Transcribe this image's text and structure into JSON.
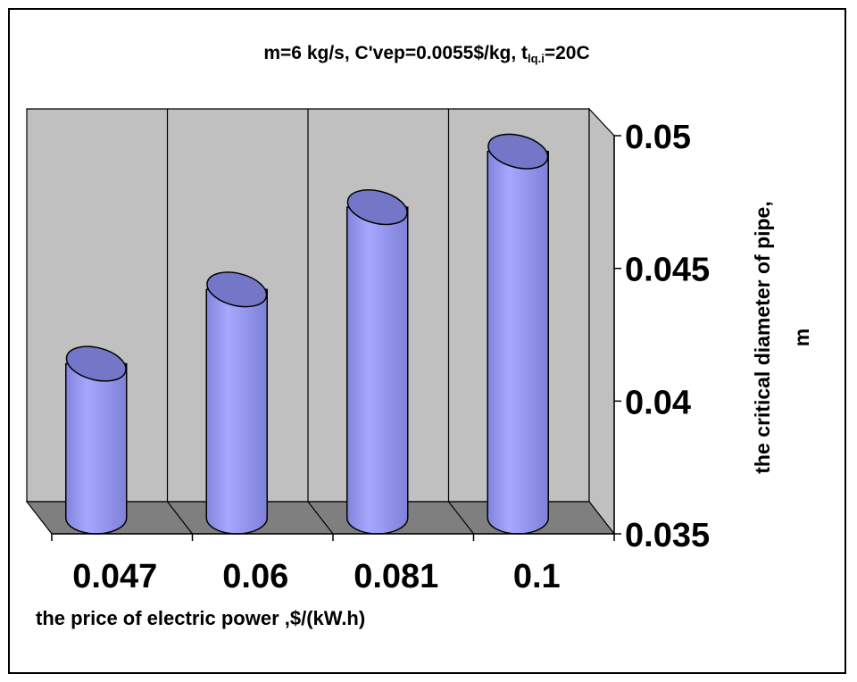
{
  "chart_data": {
    "type": "bar",
    "style": "3d-cylinder",
    "title": {
      "main": "m=6 kg/s, C'vep=0.0055$/kg, t",
      "subscript": "lq.i",
      "suffix": "=20C"
    },
    "xlabel": "the price of electric power ,$/(kW.h)",
    "ylabel_line1": "the critical diameter of pipe,",
    "ylabel_line2": "m",
    "categories": [
      "0.047",
      "0.06",
      "0.081",
      "0.1"
    ],
    "values": [
      0.0408,
      0.0436,
      0.0467,
      0.0488
    ],
    "ylim": [
      0.035,
      0.05
    ],
    "yticks": [
      "0.035",
      "0.04",
      "0.045",
      "0.05"
    ],
    "ytick_values": [
      0.035,
      0.04,
      0.045,
      0.05
    ],
    "grid": true,
    "axis_side": "right",
    "colors": {
      "bar_body": "#9a9cf2",
      "bar_top": "#7476c8",
      "wall": "#c0c0c0",
      "floor": "#7f7f7f",
      "border": "#000000"
    }
  }
}
